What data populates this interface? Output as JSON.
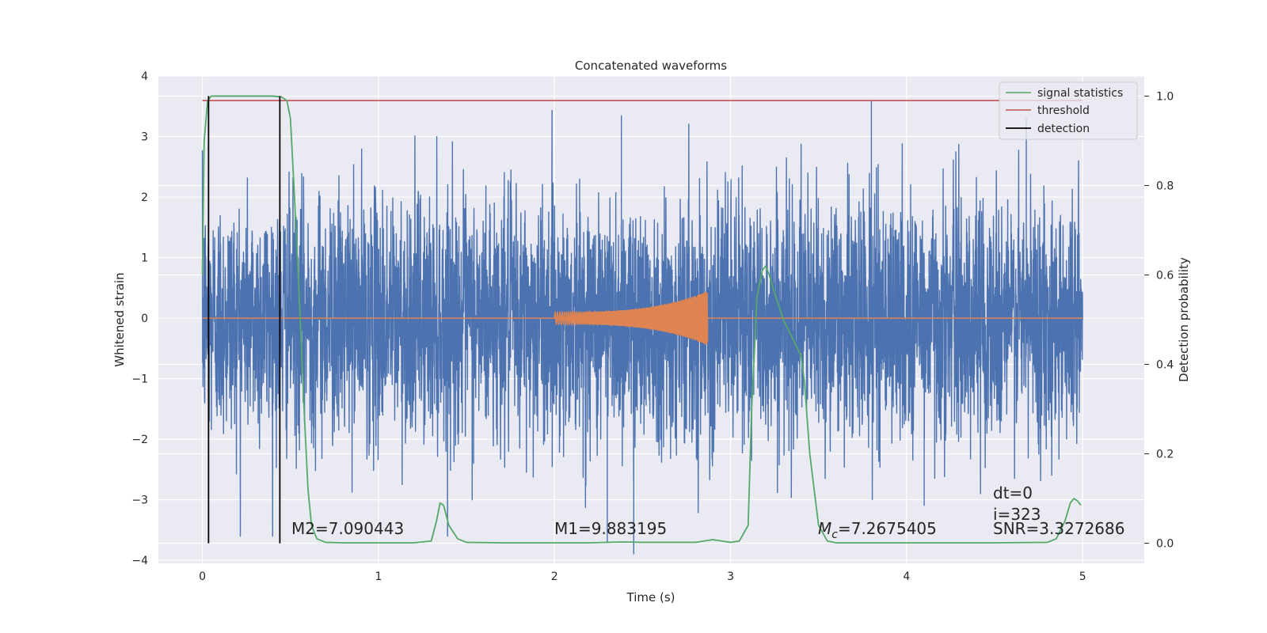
{
  "chart_data": {
    "type": "line",
    "title": "Concatenated waveforms",
    "xlabel": "Time (s)",
    "ylabel": "Whitened strain",
    "y2label": "Detection probability",
    "xlim": [
      -0.25,
      5.35
    ],
    "ylim": [
      -4.05,
      4.0
    ],
    "y2lim": [
      -0.045,
      1.045
    ],
    "xticks": [
      0,
      1,
      2,
      3,
      4,
      5
    ],
    "yticks": [
      -4,
      -3,
      -2,
      -1,
      0,
      1,
      2,
      3,
      4
    ],
    "y2ticks": [
      0.0,
      0.2,
      0.4,
      0.6,
      0.8,
      1.0
    ],
    "y2ticks_labels": [
      "0.0",
      "0.2",
      "0.4",
      "0.6",
      "0.8",
      "1.0"
    ],
    "grid": true,
    "legend_position": "top-right",
    "legend": [
      "signal statistics",
      "threshold",
      "detection"
    ],
    "colors": {
      "strain": "#4c72b0",
      "template": "#dd8452",
      "signal": "#55a868",
      "threshold": "#c44e52",
      "detection": "#000000",
      "background": "#eaeaf2",
      "grid": "#ffffff"
    },
    "strain": {
      "x_range": [
        0,
        5
      ],
      "typical_amplitude": 1.0,
      "envelope_max": 3.6,
      "peaks": [
        {
          "x": 2.38,
          "y": 3.35
        },
        {
          "x": 3.8,
          "y": 3.6
        },
        {
          "x": 4.68,
          "y": 3.3
        },
        {
          "x": 2.45,
          "y": -3.9
        },
        {
          "x": 2.3,
          "y": -3.7
        },
        {
          "x": 4.1,
          "y": -3.1
        }
      ]
    },
    "template_waveform": {
      "x_start": 2.0,
      "x_end": 2.87,
      "amplitude_start": 0.1,
      "amplitude_peak": 0.45
    },
    "signal_statistics": {
      "x": [
        0,
        0.01,
        0.03,
        0.05,
        0.1,
        0.2,
        0.3,
        0.4,
        0.45,
        0.48,
        0.5,
        0.52,
        0.55,
        0.58,
        0.6,
        0.62,
        0.65,
        0.7,
        0.8,
        1.0,
        1.2,
        1.3,
        1.33,
        1.35,
        1.37,
        1.4,
        1.45,
        1.5,
        1.7,
        2.0,
        2.2,
        2.4,
        2.5,
        2.8,
        2.9,
        2.95,
        3.0,
        3.05,
        3.1,
        3.12,
        3.15,
        3.18,
        3.2,
        3.22,
        3.25,
        3.3,
        3.35,
        3.4,
        3.42,
        3.45,
        3.5,
        3.55,
        3.6,
        3.7,
        4.0,
        4.5,
        4.8,
        4.85,
        4.9,
        4.93,
        4.95,
        4.97,
        4.99
      ],
      "y": [
        0.6,
        0.9,
        0.99,
        1.0,
        1.0,
        1.0,
        1.0,
        1.0,
        0.998,
        0.99,
        0.95,
        0.8,
        0.55,
        0.28,
        0.12,
        0.04,
        0.01,
        0.002,
        0.001,
        0.001,
        0.001,
        0.005,
        0.05,
        0.09,
        0.085,
        0.04,
        0.01,
        0.002,
        0.001,
        0.001,
        0.001,
        0.003,
        0.002,
        0.002,
        0.008,
        0.005,
        0.002,
        0.005,
        0.04,
        0.3,
        0.55,
        0.61,
        0.62,
        0.6,
        0.56,
        0.5,
        0.46,
        0.42,
        0.36,
        0.2,
        0.04,
        0.005,
        0.001,
        0.001,
        0.001,
        0.001,
        0.002,
        0.01,
        0.05,
        0.09,
        0.1,
        0.095,
        0.085
      ]
    },
    "threshold": {
      "y": 0.99,
      "x_range": [
        0,
        5
      ]
    },
    "detections": [
      0.035,
      0.44
    ],
    "annotations": {
      "m2": "M2=7.090443",
      "m1": "M1=9.883195",
      "mc": "=7.2675405",
      "mc_symbol": "M",
      "mc_subscript": "c",
      "dt": "dt=0",
      "i": "i=323",
      "snr": "SNR=3.3272686"
    }
  }
}
